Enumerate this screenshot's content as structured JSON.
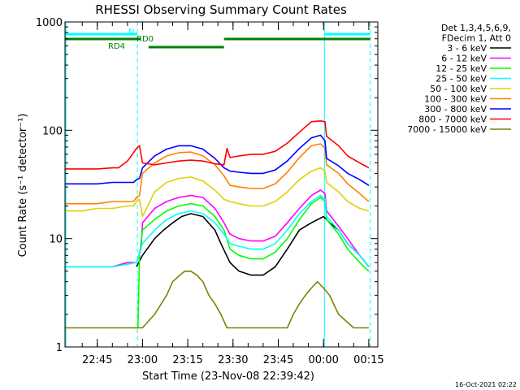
{
  "chart_data": {
    "type": "line",
    "title": "RHESSI Observing Summary Count Rates",
    "xlabel": "Start Time (23-Nov-08 22:39:42)",
    "ylabel": "Count Rate (s⁻¹ detector⁻¹)",
    "y_scale": "log",
    "ylim": [
      1,
      1000
    ],
    "xlim_minutes": [
      -5.7,
      98
    ],
    "y_ticks": [
      {
        "value": 1,
        "label": "1"
      },
      {
        "value": 10,
        "label": "10"
      },
      {
        "value": 100,
        "label": "100"
      },
      {
        "value": 1000,
        "label": "1000"
      }
    ],
    "x_ticks": [
      {
        "minute": 5,
        "label": "22:45"
      },
      {
        "minute": 20,
        "label": "23:00"
      },
      {
        "minute": 35,
        "label": "23:15"
      },
      {
        "minute": 50,
        "label": "23:30"
      },
      {
        "minute": 65,
        "label": "23:45"
      },
      {
        "minute": 80,
        "label": "00:00"
      },
      {
        "minute": 95,
        "label": "00:15"
      }
    ],
    "legend_header": [
      "Det 1,3,4,5,6,9,",
      "FDecim 1, Att 0"
    ],
    "legend_position": "right",
    "flag_labels": [
      {
        "label": "N",
        "color": "#00ffff"
      },
      {
        "label": "RD0",
        "color": "#008000"
      },
      {
        "label": "RD4",
        "color": "#008000"
      }
    ],
    "series": [
      {
        "name": "3 - 6 keV",
        "color": "#000000",
        "x": [
          18,
          20,
          24,
          27,
          30,
          33,
          36,
          40,
          44,
          46,
          49,
          52,
          56,
          60,
          64,
          68,
          72,
          76,
          80,
          82,
          85,
          88,
          92,
          95
        ],
        "y": [
          5.5,
          7,
          10,
          12,
          14,
          16,
          17,
          16,
          12,
          9,
          6,
          5,
          4.6,
          4.6,
          5.5,
          8,
          12,
          14,
          16,
          14,
          12,
          9,
          7,
          5.5
        ]
      },
      {
        "name": "6 - 12 keV",
        "color": "#ff00ff",
        "x": [
          -5.7,
          0,
          5,
          10,
          15,
          18,
          19.5,
          20,
          24,
          28,
          32,
          36,
          40,
          44,
          47,
          49,
          52,
          56,
          60,
          64,
          68,
          72,
          76,
          79,
          80.5,
          81,
          85,
          88,
          92,
          95
        ],
        "y": [
          5.5,
          5.5,
          5.5,
          5.5,
          6,
          6,
          8,
          14,
          19,
          22,
          24,
          25,
          24,
          19,
          14,
          11,
          10,
          9.5,
          9.5,
          10.5,
          14,
          19,
          25,
          28,
          26,
          18,
          13,
          10,
          7,
          5.5
        ]
      },
      {
        "name": "12 - 25 keV",
        "color": "#00ff00",
        "x": [
          17,
          18.5,
          19,
          20,
          24,
          28,
          32,
          36,
          40,
          44,
          47,
          49,
          52,
          56,
          60,
          64,
          68,
          72,
          76,
          79,
          80.5,
          81,
          85,
          88,
          92,
          95
        ],
        "y": [
          1.5,
          1.5,
          7,
          12,
          15,
          18,
          20,
          21,
          20,
          16,
          12,
          8,
          7,
          6.5,
          6.5,
          7.5,
          10,
          15,
          21,
          24,
          22,
          15,
          11,
          8,
          6,
          5
        ]
      },
      {
        "name": "25 - 50 keV",
        "color": "#00ffff",
        "x": [
          -5.7,
          0,
          5,
          10,
          15,
          18,
          20,
          24,
          28,
          32,
          36,
          40,
          44,
          47,
          49,
          52,
          56,
          60,
          64,
          68,
          72,
          76,
          79,
          80.5,
          81,
          85,
          88,
          92,
          95
        ],
        "y": [
          5.5,
          5.5,
          5.5,
          5.5,
          5.8,
          6,
          9,
          12,
          15,
          17,
          18,
          17,
          14,
          11,
          9,
          8.5,
          8,
          8,
          9,
          12,
          17,
          22,
          25,
          23,
          16,
          12,
          9,
          7,
          5.5
        ]
      },
      {
        "name": "50 - 100 keV",
        "color": "#e0d000",
        "x": [
          -5.7,
          0,
          5,
          10,
          15,
          17,
          18,
          19,
          20,
          24,
          28,
          32,
          36,
          40,
          44,
          47,
          49,
          52,
          56,
          60,
          64,
          68,
          72,
          76,
          79,
          80.5,
          81,
          85,
          88,
          92,
          95
        ],
        "y": [
          18,
          18,
          19,
          19,
          20,
          20,
          22,
          23,
          16,
          27,
          33,
          36,
          37,
          34,
          28,
          23,
          22,
          21,
          20,
          20,
          22,
          27,
          35,
          42,
          45,
          42,
          33,
          27,
          22,
          19,
          18
        ]
      },
      {
        "name": "100 - 300 keV",
        "color": "#ff8000",
        "x": [
          -5.7,
          0,
          5,
          10,
          15,
          17,
          18,
          19,
          20,
          24,
          28,
          32,
          36,
          40,
          44,
          47,
          49,
          52,
          56,
          60,
          64,
          68,
          72,
          76,
          79,
          80.5,
          81,
          85,
          88,
          92,
          95
        ],
        "y": [
          21,
          21,
          21,
          22,
          22,
          22,
          24,
          25,
          40,
          50,
          58,
          62,
          63,
          58,
          48,
          38,
          31,
          30,
          29,
          29,
          32,
          41,
          56,
          72,
          75,
          68,
          48,
          40,
          32,
          26,
          22
        ]
      },
      {
        "name": "300 - 800 keV",
        "color": "#0000ff",
        "x": [
          -5.7,
          0,
          5,
          10,
          15,
          17,
          18,
          19,
          20,
          24,
          28,
          32,
          36,
          40,
          44,
          47,
          49,
          52,
          56,
          60,
          64,
          68,
          72,
          76,
          79,
          80.5,
          81,
          85,
          88,
          92,
          95
        ],
        "y": [
          32,
          32,
          32,
          33,
          33,
          33,
          35,
          36,
          45,
          58,
          67,
          72,
          72,
          67,
          55,
          45,
          42,
          41,
          40,
          40,
          43,
          52,
          68,
          85,
          90,
          80,
          55,
          47,
          40,
          35,
          31
        ]
      },
      {
        "name": "800 - 7000 keV",
        "color": "#ff0000",
        "x": [
          -5.7,
          0,
          5,
          10,
          12,
          15,
          17,
          18,
          19,
          20,
          24,
          28,
          32,
          36,
          40,
          44,
          47,
          48,
          49,
          52,
          56,
          60,
          64,
          68,
          72,
          76,
          79,
          80.5,
          81,
          85,
          88,
          92,
          95
        ],
        "y": [
          44,
          44,
          44,
          45,
          45,
          52,
          62,
          68,
          72,
          50,
          48,
          50,
          52,
          53,
          52,
          49,
          48,
          68,
          56,
          58,
          60,
          60,
          64,
          76,
          96,
          120,
          122,
          120,
          88,
          72,
          58,
          50,
          45
        ]
      },
      {
        "name": "7000 - 15000 keV",
        "color": "#808000",
        "x": [
          -5.7,
          0,
          5,
          10,
          12,
          15,
          17,
          18,
          20,
          24,
          28,
          30,
          32,
          34,
          36,
          38,
          40,
          42,
          44,
          46,
          48,
          52,
          56,
          60,
          64,
          68,
          70,
          72,
          74,
          76,
          78,
          80,
          82,
          85,
          90,
          95
        ],
        "y": [
          1.5,
          1.5,
          1.5,
          1.5,
          1.5,
          1.5,
          1.5,
          1.5,
          1.5,
          2,
          3,
          4,
          4.5,
          5,
          5,
          4.6,
          4,
          3,
          2.5,
          2,
          1.5,
          1.5,
          1.5,
          1.5,
          1.5,
          1.5,
          2,
          2.5,
          3,
          3.5,
          4,
          3.5,
          3,
          2,
          1.5,
          1.5
        ]
      }
    ],
    "vertical_lines": [
      {
        "minute": -5.4,
        "color": "#00ffff",
        "style": "solid"
      },
      {
        "minute": 18.3,
        "color": "#00ffff",
        "style": "dashed"
      },
      {
        "minute": 80.3,
        "color": "#00ffff",
        "style": "solid"
      },
      {
        "minute": 95.5,
        "color": "#00ffff",
        "style": "dashed"
      }
    ],
    "flag_segments": [
      {
        "flag": "N",
        "color": "#00ffff",
        "from": -5.7,
        "to": 18.3
      },
      {
        "flag": "N",
        "color": "#00ffff",
        "from": 80.3,
        "to": 95.5
      },
      {
        "flag": "RD0",
        "color": "#008000",
        "from": -5.7,
        "to": 19.5
      },
      {
        "flag": "RD0",
        "color": "#008000",
        "from": 47,
        "to": 95.5
      },
      {
        "flag": "RD4",
        "color": "#008000",
        "from": 22,
        "to": 47
      }
    ]
  },
  "footer": {
    "timestamp": "16-Oct-2021 02:22"
  }
}
